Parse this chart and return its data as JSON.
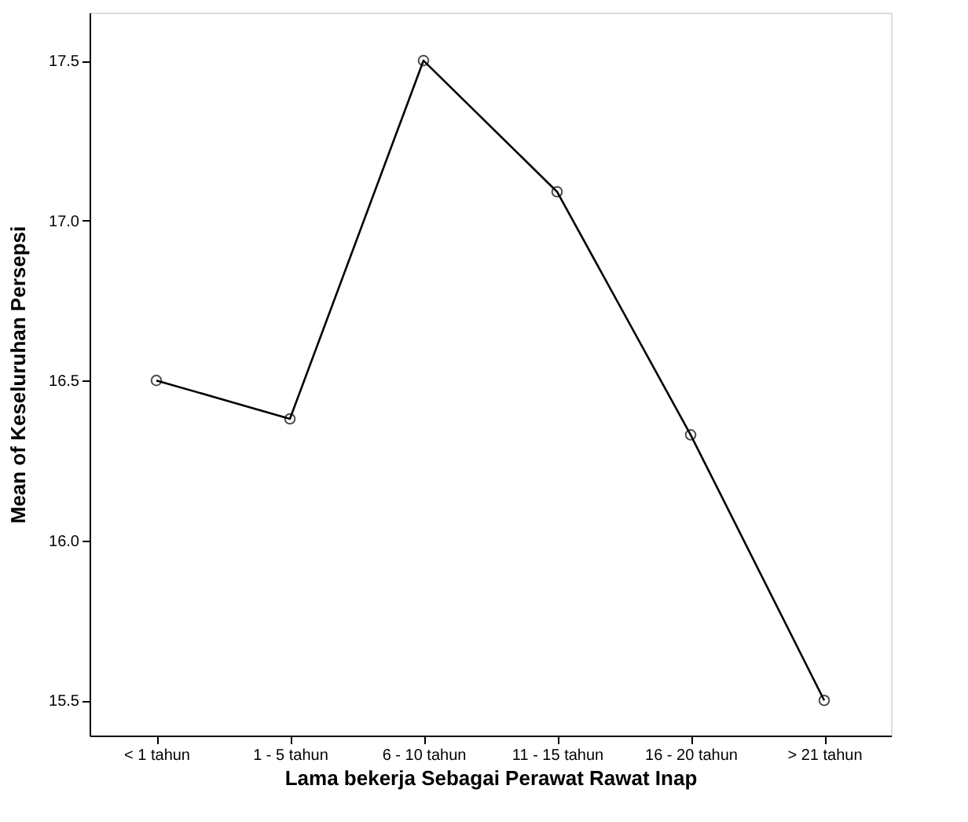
{
  "chart_data": {
    "type": "line",
    "xlabel": "Lama bekerja Sebagai Perawat Rawat Inap",
    "ylabel": "Mean of Keseluruhan Persepsi",
    "categories": [
      "< 1 tahun",
      "1 - 5 tahun",
      "6 - 10 tahun",
      "11 - 15 tahun",
      "16 - 20 tahun",
      "> 21 tahun"
    ],
    "series": [
      {
        "color": "#000000",
        "values": [
          16.5,
          16.38,
          17.5,
          17.09,
          16.33,
          15.5
        ]
      }
    ],
    "ylim": [
      15.39,
      17.65
    ],
    "yticks": [
      15.5,
      {
        "value": 16,
        "label": "16.0"
      },
      16.5,
      {
        "value": 17,
        "label": "17.0"
      },
      17.5
    ],
    "marker": "circle",
    "line_style": "solid",
    "grid": false,
    "legend": false
  }
}
